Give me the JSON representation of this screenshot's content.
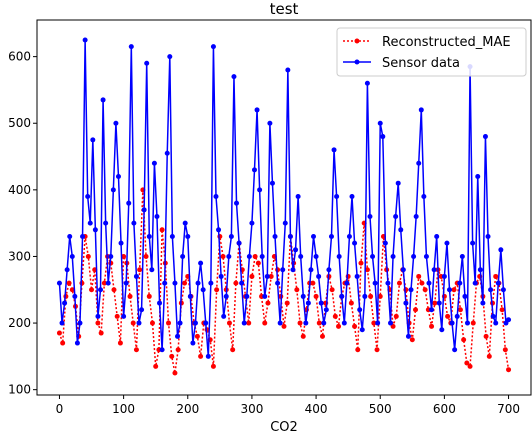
{
  "chart_data": {
    "type": "line",
    "title": "test",
    "xlabel": "CO2",
    "ylabel": "",
    "xlim": [
      -35,
      735
    ],
    "ylim": [
      92,
      655
    ],
    "x_ticks": [
      0,
      100,
      200,
      300,
      400,
      500,
      600,
      700
    ],
    "y_ticks": [
      100,
      200,
      300,
      400,
      500,
      600
    ],
    "grid": false,
    "legend_position": "upper right",
    "series": [
      {
        "name": "Reconstructed_MAE",
        "color": "#ff0000",
        "style": "dotted",
        "marker": "circle",
        "x": [
          0,
          5,
          10,
          15,
          20,
          25,
          30,
          35,
          40,
          45,
          50,
          55,
          60,
          65,
          70,
          75,
          80,
          85,
          90,
          95,
          100,
          105,
          110,
          115,
          120,
          125,
          130,
          135,
          140,
          145,
          150,
          155,
          160,
          165,
          170,
          175,
          180,
          185,
          190,
          195,
          200,
          205,
          210,
          215,
          220,
          225,
          230,
          235,
          240,
          245,
          250,
          255,
          260,
          265,
          270,
          275,
          280,
          285,
          290,
          295,
          300,
          305,
          310,
          315,
          320,
          325,
          330,
          335,
          340,
          345,
          350,
          355,
          360,
          365,
          370,
          375,
          380,
          385,
          390,
          395,
          400,
          405,
          410,
          415,
          420,
          425,
          430,
          435,
          440,
          445,
          450,
          455,
          460,
          465,
          470,
          475,
          480,
          485,
          490,
          495,
          500,
          505,
          510,
          515,
          520,
          525,
          530,
          535,
          540,
          545,
          550,
          555,
          560,
          565,
          570,
          575,
          580,
          585,
          590,
          595,
          600,
          605,
          610,
          615,
          620,
          625,
          630,
          635,
          640,
          645,
          650,
          655,
          660,
          665,
          670,
          675,
          680,
          685,
          690,
          695,
          700
        ],
        "values": [
          185,
          170,
          240,
          260,
          250,
          225,
          180,
          260,
          330,
          300,
          250,
          280,
          200,
          185,
          260,
          300,
          290,
          250,
          210,
          170,
          300,
          290,
          240,
          200,
          160,
          280,
          400,
          300,
          240,
          200,
          135,
          160,
          340,
          290,
          200,
          150,
          125,
          160,
          230,
          260,
          270,
          240,
          200,
          180,
          150,
          200,
          190,
          175,
          135,
          250,
          330,
          300,
          250,
          200,
          160,
          260,
          320,
          280,
          240,
          200,
          270,
          300,
          290,
          240,
          200,
          230,
          270,
          300,
          280,
          240,
          195,
          230,
          330,
          290,
          250,
          200,
          180,
          220,
          260,
          260,
          240,
          200,
          180,
          230,
          270,
          250,
          210,
          195,
          240,
          260,
          270,
          230,
          195,
          160,
          290,
          350,
          280,
          240,
          200,
          160,
          240,
          330,
          280,
          250,
          195,
          210,
          260,
          280,
          250,
          200,
          175,
          220,
          270,
          260,
          250,
          220,
          195,
          230,
          280,
          270,
          240,
          210,
          200,
          250,
          260,
          220,
          175,
          140,
          135,
          200,
          260,
          270,
          240,
          180,
          150,
          230,
          270,
          260,
          220,
          160,
          130
        ]
      },
      {
        "name": "Sensor data",
        "color": "#0000ff",
        "style": "solid",
        "marker": "circle",
        "x": [
          0,
          4,
          8,
          12,
          16,
          20,
          24,
          28,
          32,
          36,
          40,
          44,
          48,
          52,
          56,
          60,
          64,
          68,
          72,
          76,
          80,
          84,
          88,
          92,
          96,
          100,
          104,
          108,
          112,
          116,
          120,
          124,
          128,
          132,
          136,
          140,
          144,
          148,
          152,
          156,
          160,
          164,
          168,
          172,
          176,
          180,
          184,
          188,
          192,
          196,
          200,
          204,
          208,
          212,
          216,
          220,
          224,
          228,
          232,
          236,
          240,
          244,
          248,
          252,
          256,
          260,
          264,
          268,
          272,
          276,
          280,
          284,
          288,
          292,
          296,
          300,
          304,
          308,
          312,
          316,
          320,
          324,
          328,
          332,
          336,
          340,
          344,
          348,
          352,
          356,
          360,
          364,
          368,
          372,
          376,
          380,
          384,
          388,
          392,
          396,
          400,
          404,
          408,
          412,
          416,
          420,
          424,
          428,
          432,
          436,
          440,
          444,
          448,
          452,
          456,
          460,
          464,
          468,
          472,
          476,
          480,
          484,
          488,
          492,
          496,
          500,
          504,
          508,
          512,
          516,
          520,
          524,
          528,
          532,
          536,
          540,
          544,
          548,
          552,
          556,
          560,
          564,
          568,
          572,
          576,
          580,
          584,
          588,
          592,
          596,
          600,
          604,
          608,
          612,
          616,
          620,
          624,
          628,
          632,
          636,
          640,
          644,
          648,
          652,
          656,
          660,
          664,
          668,
          672,
          676,
          680,
          684,
          688,
          692,
          696,
          700
        ],
        "values": [
          260,
          200,
          230,
          280,
          330,
          300,
          240,
          170,
          200,
          330,
          625,
          390,
          350,
          475,
          340,
          210,
          250,
          535,
          350,
          260,
          300,
          400,
          500,
          420,
          320,
          210,
          260,
          380,
          615,
          350,
          270,
          200,
          220,
          370,
          590,
          330,
          280,
          440,
          360,
          230,
          160,
          260,
          455,
          600,
          330,
          260,
          180,
          200,
          300,
          350,
          330,
          240,
          170,
          200,
          260,
          290,
          250,
          200,
          150,
          260,
          615,
          390,
          340,
          270,
          210,
          240,
          300,
          330,
          570,
          380,
          320,
          260,
          200,
          240,
          300,
          350,
          430,
          520,
          400,
          300,
          240,
          270,
          500,
          410,
          330,
          260,
          200,
          280,
          350,
          580,
          330,
          280,
          310,
          390,
          300,
          240,
          200,
          230,
          280,
          330,
          300,
          270,
          230,
          200,
          220,
          280,
          330,
          460,
          390,
          300,
          240,
          200,
          260,
          330,
          390,
          320,
          270,
          220,
          190,
          240,
          560,
          360,
          300,
          260,
          200,
          500,
          480,
          320,
          260,
          200,
          300,
          360,
          410,
          340,
          280,
          230,
          180,
          250,
          300,
          360,
          440,
          520,
          390,
          300,
          260,
          220,
          280,
          330,
          230,
          190,
          270,
          320,
          250,
          200,
          160,
          210,
          260,
          300,
          240,
          200,
          585,
          320,
          260,
          420,
          280,
          230,
          480,
          330,
          250,
          210,
          200,
          260,
          310,
          250,
          200,
          205
        ]
      }
    ]
  }
}
